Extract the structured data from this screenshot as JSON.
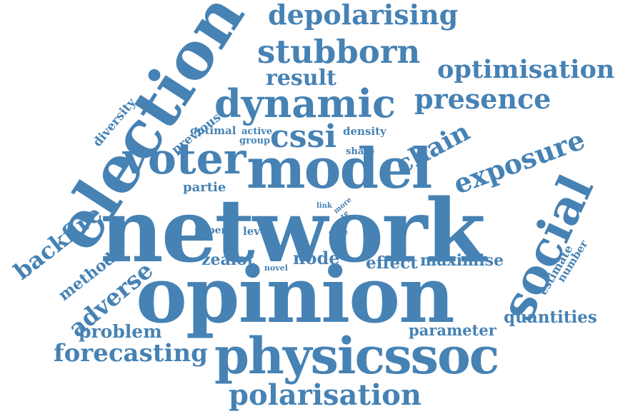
{
  "color": "#4682b4",
  "words": {
    "network": "network",
    "opinion": "opinion",
    "election": "election",
    "model": "model",
    "physicssoc": "physicssoc",
    "social": "social",
    "voter": "voter",
    "dynamic": "dynamic",
    "stubborn": "stubborn",
    "depolarising": "depolarising",
    "cssi": "cssi",
    "exposure": "exposure",
    "presence": "presence",
    "optimisation": "optimisation",
    "result": "result",
    "chain": "chain",
    "polarisation": "polarisation",
    "forecasting": "forecasting",
    "backfire": "backfire",
    "adverse": "adverse",
    "method": "method",
    "problem": "problem",
    "quantities": "quantities",
    "parameter": "parameter",
    "effect": "effect",
    "maximise": "maximise",
    "node": "node",
    "zealot": "zealot",
    "diversity": "diversity",
    "previous": "previous",
    "optimal": "optimal",
    "active": "active",
    "group": "group",
    "density": "density",
    "share": "share",
    "partie": "partie",
    "link": "link",
    "vote": "vote",
    "more": "more",
    "paper": "paper",
    "level": "level",
    "case": "case",
    "novel": "novel",
    "estimate": "estimate",
    "number": "number"
  }
}
